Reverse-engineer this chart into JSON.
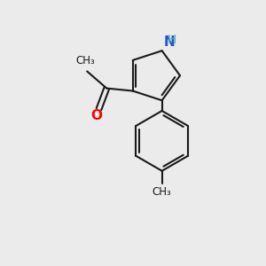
{
  "background_color": "#ebebeb",
  "bond_color": "#1a1a1a",
  "bond_width": 1.5,
  "atom_labels": {
    "N": {
      "color": "#2255cc",
      "fontsize": 11,
      "fontweight": "bold"
    },
    "H_on_N": {
      "color": "#4ab8b8",
      "fontsize": 10
    },
    "O": {
      "color": "#ff0000",
      "fontsize": 11,
      "fontweight": "bold"
    }
  },
  "figsize": [
    3.0,
    3.0
  ],
  "dpi": 100,
  "xlim": [
    0,
    10
  ],
  "ylim": [
    0,
    10
  ]
}
